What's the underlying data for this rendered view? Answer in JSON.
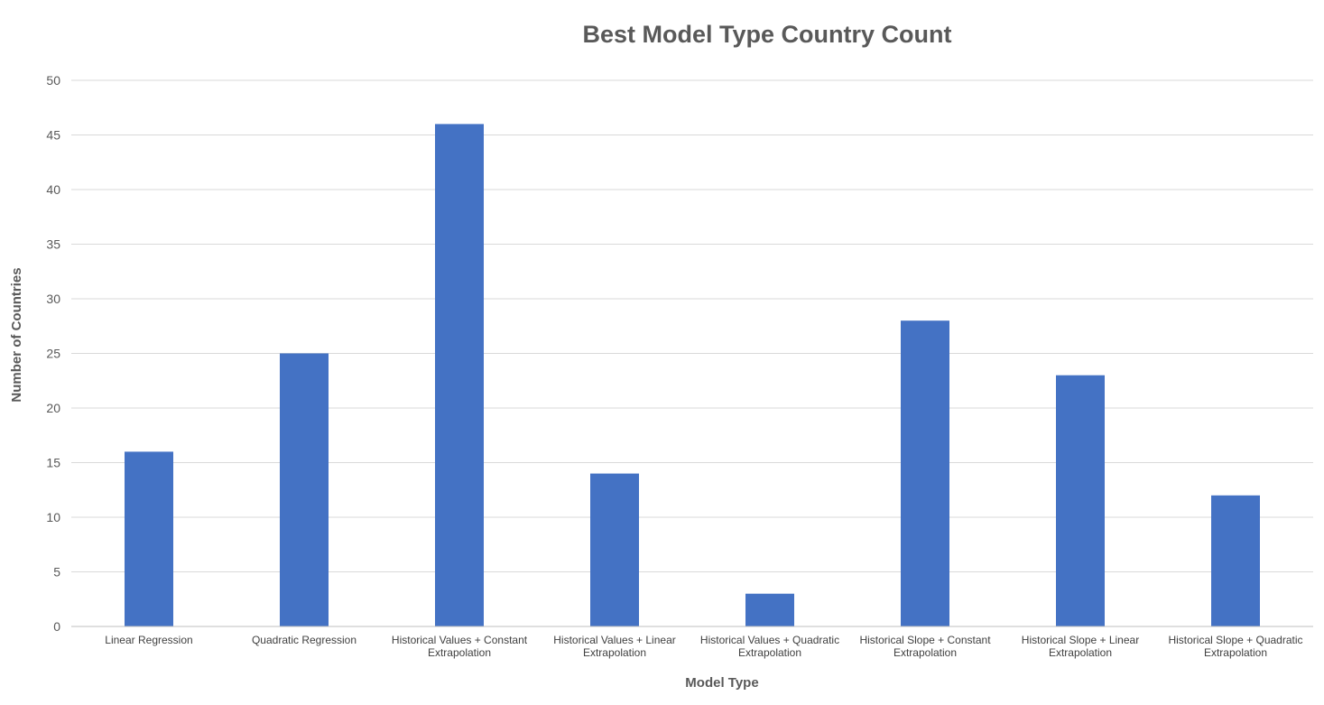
{
  "chart_data": {
    "type": "bar",
    "title": "Best Model Type Country Count",
    "xlabel": "Model Type",
    "ylabel": "Number of Countries",
    "ylim": [
      0,
      50
    ],
    "yticks": [
      0,
      5,
      10,
      15,
      20,
      25,
      30,
      35,
      40,
      45,
      50
    ],
    "grid": true,
    "legend": "none",
    "categories": [
      [
        "Linear Regression"
      ],
      [
        "Quadratic Regression"
      ],
      [
        "Historical Values + Constant",
        "Extrapolation"
      ],
      [
        "Historical Values + Linear",
        "Extrapolation"
      ],
      [
        "Historical Values + Quadratic",
        "Extrapolation"
      ],
      [
        "Historical Slope + Constant",
        "Extrapolation"
      ],
      [
        "Historical Slope + Linear",
        "Extrapolation"
      ],
      [
        "Historical Slope + Quadratic",
        "Extrapolation"
      ]
    ],
    "values": [
      16,
      25,
      46,
      14,
      3,
      28,
      23,
      12
    ],
    "bar_color": "#4472c4"
  }
}
